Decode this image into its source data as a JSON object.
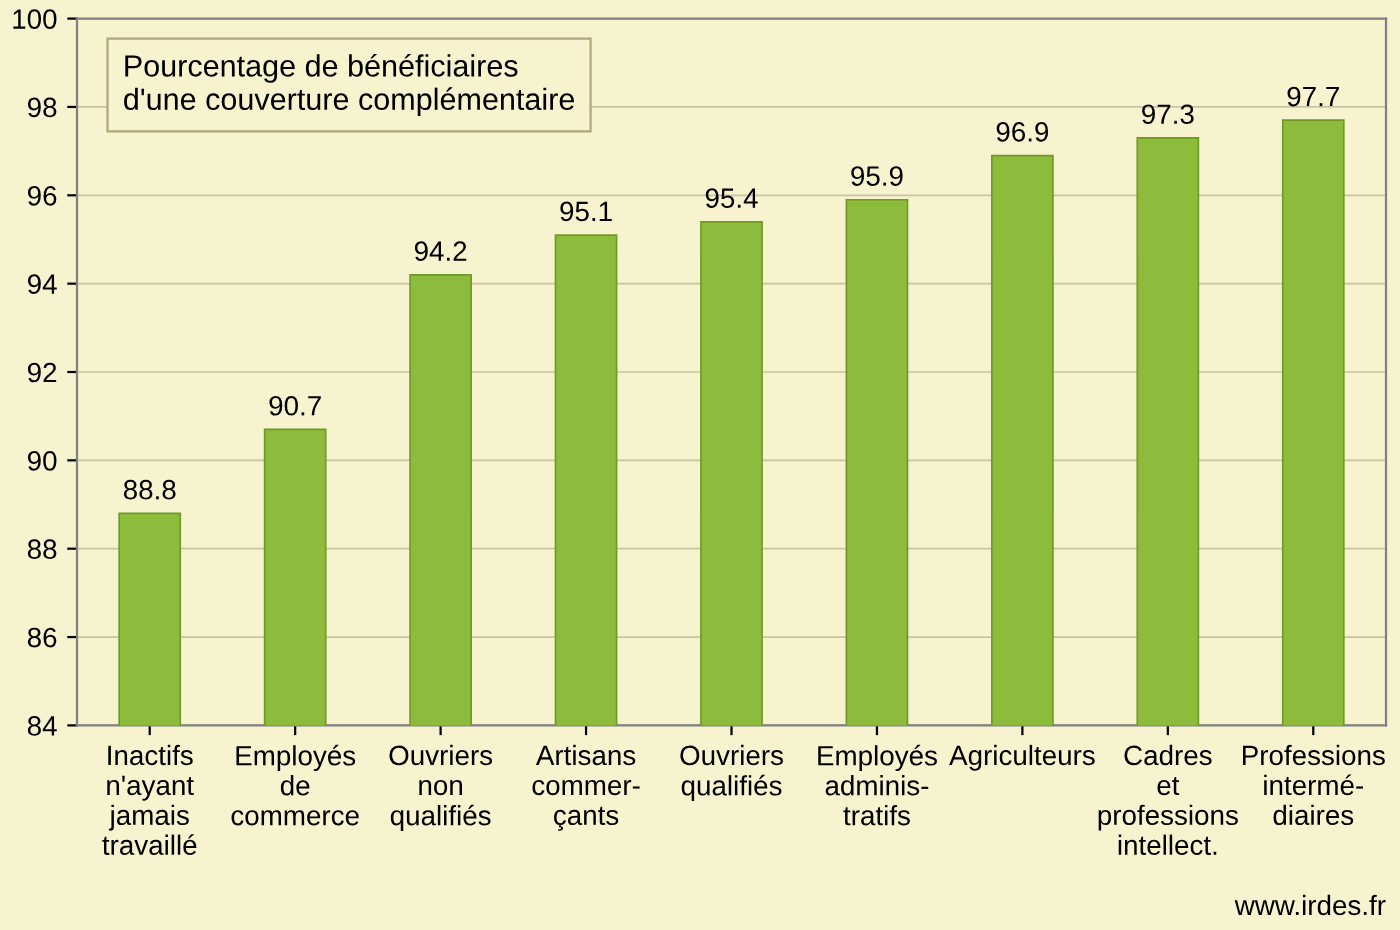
{
  "chart_data": {
    "type": "bar",
    "title": "Pourcentage de bénéficiaires\nd'une couverture complémentaire",
    "categories": [
      "Inactifs\nn'ayant\njamais\ntravaillé",
      "Employés\nde\ncommerce",
      "Ouvriers\nnon\nqualifiés",
      "Artisans\ncommer-\nçants",
      "Ouvriers\nqualifiés",
      "Employés\nadminis-\ntratifs",
      "Agriculteurs",
      "Cadres\net\nprofessions\nintellect.",
      "Professions\nintermé-\ndiaires"
    ],
    "values": [
      88.8,
      90.7,
      94.2,
      95.1,
      95.4,
      95.9,
      96.9,
      97.3,
      97.7
    ],
    "color": "#8dbb3c",
    "ylim": [
      84,
      100
    ],
    "yticks": [
      84,
      86,
      88,
      90,
      92,
      94,
      96,
      98,
      100
    ],
    "grid": "y",
    "data_labels": true,
    "annotations": [
      "www.irdes.fr"
    ]
  }
}
